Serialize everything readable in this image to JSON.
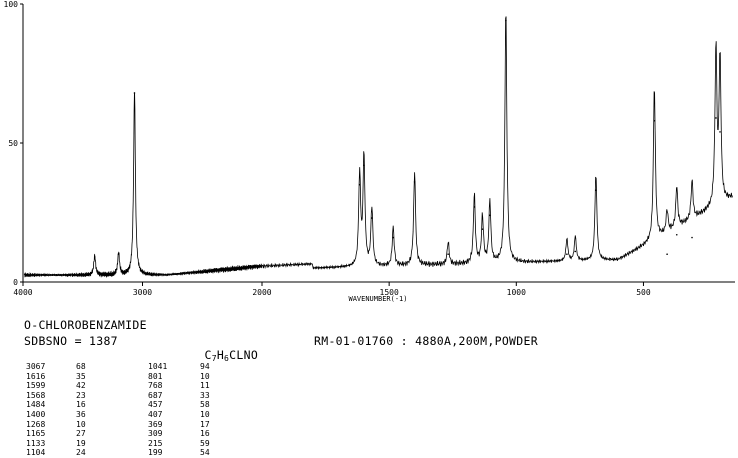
{
  "chart_data": {
    "type": "line",
    "xlabel": "WAVENUMBER(-1)",
    "ylabel": "",
    "xlim": [
      4000,
      140
    ],
    "ylim": [
      0,
      100
    ],
    "x_ticks": [
      "4000",
      "3000",
      "2000",
      "1500",
      "1000",
      "500"
    ],
    "y_ticks": [
      "0",
      "50",
      "100"
    ],
    "grid": false,
    "series": [
      {
        "peaks": [
          {
            "x": 3400,
            "y": 9
          },
          {
            "x": 3200,
            "y": 10
          },
          {
            "x": 3067,
            "y": 68
          },
          {
            "x": 1616,
            "y": 35
          },
          {
            "x": 1599,
            "y": 42
          },
          {
            "x": 1568,
            "y": 23
          },
          {
            "x": 1484,
            "y": 16
          },
          {
            "x": 1400,
            "y": 36
          },
          {
            "x": 1268,
            "y": 10
          },
          {
            "x": 1165,
            "y": 27
          },
          {
            "x": 1133,
            "y": 19
          },
          {
            "x": 1104,
            "y": 24
          },
          {
            "x": 1041,
            "y": 94
          },
          {
            "x": 801,
            "y": 10
          },
          {
            "x": 768,
            "y": 11
          },
          {
            "x": 687,
            "y": 33
          },
          {
            "x": 457,
            "y": 58
          },
          {
            "x": 407,
            "y": 10
          },
          {
            "x": 369,
            "y": 17
          },
          {
            "x": 309,
            "y": 16
          },
          {
            "x": 215,
            "y": 59
          },
          {
            "x": 199,
            "y": 54
          }
        ]
      }
    ]
  },
  "info": {
    "compound_name": "O-CHLOROBENZAMIDE",
    "sdbs_label": "SDBSNO = 1387",
    "formula_parts": [
      "C",
      "7",
      "H",
      "6",
      "CLNO"
    ],
    "measurement": "RM-01-01760 : 4880A,200M,POWDER"
  },
  "peak_table": [
    [
      "3067",
      "68",
      "1041",
      "94"
    ],
    [
      "1616",
      "35",
      "801",
      "10"
    ],
    [
      "1599",
      "42",
      "768",
      "11"
    ],
    [
      "1568",
      "23",
      "687",
      "33"
    ],
    [
      "1484",
      "16",
      "457",
      "58"
    ],
    [
      "1400",
      "36",
      "407",
      "10"
    ],
    [
      "1268",
      "10",
      "369",
      "17"
    ],
    [
      "1165",
      "27",
      "309",
      "16"
    ],
    [
      "1133",
      "19",
      "215",
      "59"
    ],
    [
      "1104",
      "24",
      "199",
      "54"
    ]
  ]
}
